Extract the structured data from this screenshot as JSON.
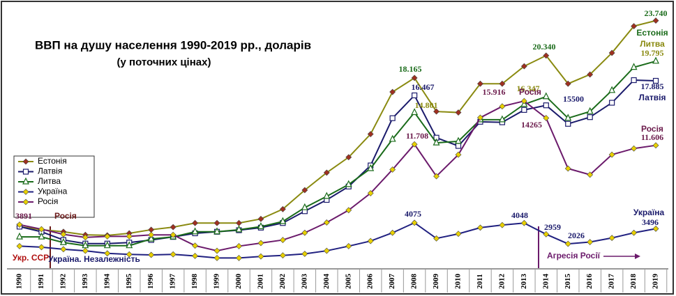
{
  "chart_data": {
    "type": "line",
    "title": "ВВП на душу населення 1990-2019 рр., доларів",
    "subtitle": "(у поточних цінах)",
    "x": [
      1990,
      1991,
      1992,
      1993,
      1994,
      1995,
      1996,
      1997,
      1998,
      1999,
      2000,
      2001,
      2002,
      2003,
      2004,
      2005,
      2006,
      2007,
      2008,
      2009,
      2010,
      2011,
      2012,
      2013,
      2014,
      2015,
      2016,
      2017,
      2018,
      2019
    ],
    "ylim": [
      0,
      25000
    ],
    "legend": "left",
    "series": [
      {
        "name": "Естонія",
        "color": "#8a8a10",
        "marker": "diamond",
        "marker_color": "#a03020",
        "label_color": "#1a6b1a",
        "values": [
          3700,
          3400,
          3200,
          2900,
          2850,
          3050,
          3400,
          3650,
          4050,
          4050,
          4050,
          4450,
          5400,
          7250,
          8950,
          10450,
          12700,
          16800,
          18165,
          14900,
          14800,
          17600,
          17600,
          19300,
          20340,
          17600,
          18500,
          20600,
          23200,
          23740
        ],
        "value_labels": [
          null,
          null,
          null,
          null,
          null,
          null,
          null,
          null,
          null,
          null,
          null,
          null,
          null,
          null,
          null,
          null,
          null,
          null,
          "18.165",
          null,
          null,
          null,
          null,
          null,
          "20.340",
          null,
          null,
          null,
          null,
          "23.740"
        ]
      },
      {
        "name": "Латвія",
        "color": "#1a1a6b",
        "marker": "square",
        "marker_color": "#ffffff",
        "label_color": "#1a1a6b",
        "values": [
          3700,
          3200,
          2400,
          2050,
          2050,
          2150,
          2400,
          2700,
          3050,
          3200,
          3350,
          3600,
          4050,
          5200,
          6300,
          7600,
          9650,
          14250,
          16467,
          12350,
          11550,
          13900,
          13850,
          15050,
          15500,
          13700,
          14350,
          15750,
          17950,
          17885
        ],
        "value_labels": [
          null,
          null,
          null,
          null,
          null,
          null,
          null,
          null,
          null,
          null,
          null,
          null,
          null,
          null,
          null,
          null,
          null,
          null,
          "16.467",
          null,
          null,
          null,
          null,
          null,
          "15500",
          null,
          null,
          null,
          null,
          "17.885"
        ]
      },
      {
        "name": "Литва",
        "color": "#1a6b1a",
        "marker": "triangle",
        "marker_color": "#ffffff",
        "label_color": "#8a8a10",
        "values": [
          2700,
          2700,
          2150,
          1850,
          1850,
          1850,
          2500,
          2700,
          3200,
          3200,
          3400,
          3700,
          4200,
          5550,
          6650,
          7800,
          9350,
          12200,
          14801,
          11850,
          12000,
          14100,
          14100,
          15600,
          16347,
          14250,
          14900,
          16950,
          19200,
          19795
        ],
        "value_labels": [
          null,
          null,
          null,
          null,
          null,
          null,
          null,
          null,
          null,
          null,
          null,
          null,
          null,
          null,
          null,
          null,
          null,
          null,
          "14.801",
          null,
          null,
          null,
          null,
          null,
          "16.347",
          null,
          null,
          null,
          null,
          "19.795"
        ]
      },
      {
        "name": "Україна",
        "color": "#202080",
        "marker": "diamond",
        "marker_color": "#e8d000",
        "label_color": "#1a1a6b",
        "values": [
          1800,
          1700,
          1500,
          1350,
          1100,
          1000,
          950,
          1000,
          850,
          650,
          650,
          800,
          900,
          1050,
          1350,
          1800,
          2300,
          3100,
          4075,
          2550,
          3000,
          3600,
          3850,
          4048,
          2959,
          2026,
          2200,
          2600,
          3100,
          3496
        ],
        "value_labels": [
          null,
          null,
          null,
          null,
          null,
          null,
          null,
          null,
          null,
          null,
          null,
          null,
          null,
          null,
          null,
          null,
          null,
          null,
          "4075",
          null,
          null,
          null,
          null,
          "4048",
          "2959",
          "2026",
          null,
          null,
          null,
          "3496"
        ]
      },
      {
        "name": "Росія",
        "color": "#6b1a6b",
        "marker": "diamond",
        "marker_color": "#e8d000",
        "label_color": "#6b1a4b",
        "values": [
          3891,
          3450,
          2950,
          2650,
          2750,
          2750,
          2900,
          2900,
          1850,
          1350,
          1800,
          2100,
          2400,
          3100,
          4100,
          5300,
          6950,
          9250,
          11708,
          8600,
          10700,
          14300,
          15400,
          15916,
          14265,
          9350,
          8750,
          10700,
          11300,
          11606
        ],
        "value_labels": [
          "3891",
          null,
          null,
          null,
          null,
          null,
          null,
          null,
          null,
          null,
          null,
          null,
          null,
          null,
          null,
          null,
          null,
          null,
          "11.708",
          null,
          null,
          null,
          null,
          "15.916",
          "14265",
          null,
          null,
          null,
          null,
          "11.606"
        ]
      }
    ],
    "annotations": [
      "Естонія",
      "Литва",
      "Латвія",
      "Росія",
      "Україна",
      "Росія",
      "Росія",
      "Укр. ССР",
      "Україна. Незалежність",
      "Агресія Росії"
    ]
  }
}
